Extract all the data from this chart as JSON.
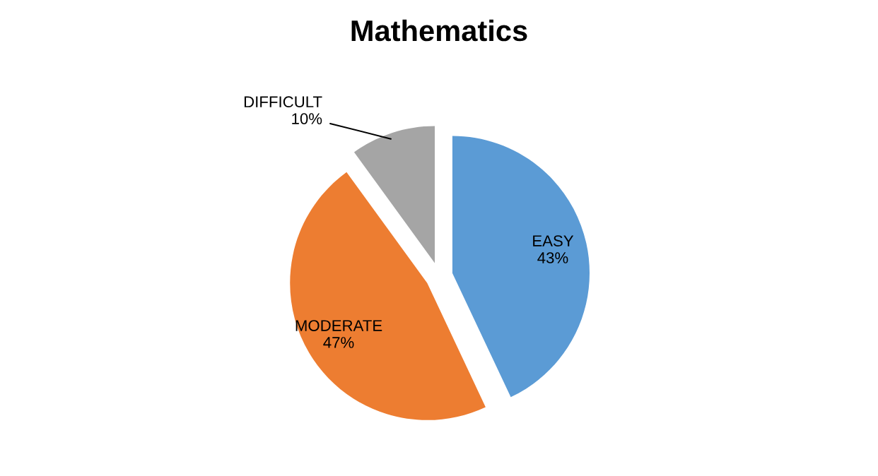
{
  "chart_data": {
    "type": "pie",
    "title": "Mathematics",
    "categories": [
      "EASY",
      "MODERATE",
      "DIFFICULT"
    ],
    "values": [
      43,
      47,
      10
    ],
    "value_labels": [
      "43%",
      "47%",
      "10%"
    ],
    "colors": [
      "#5b9bd5",
      "#ed7d31",
      "#a5a5a5"
    ],
    "legend": false
  }
}
